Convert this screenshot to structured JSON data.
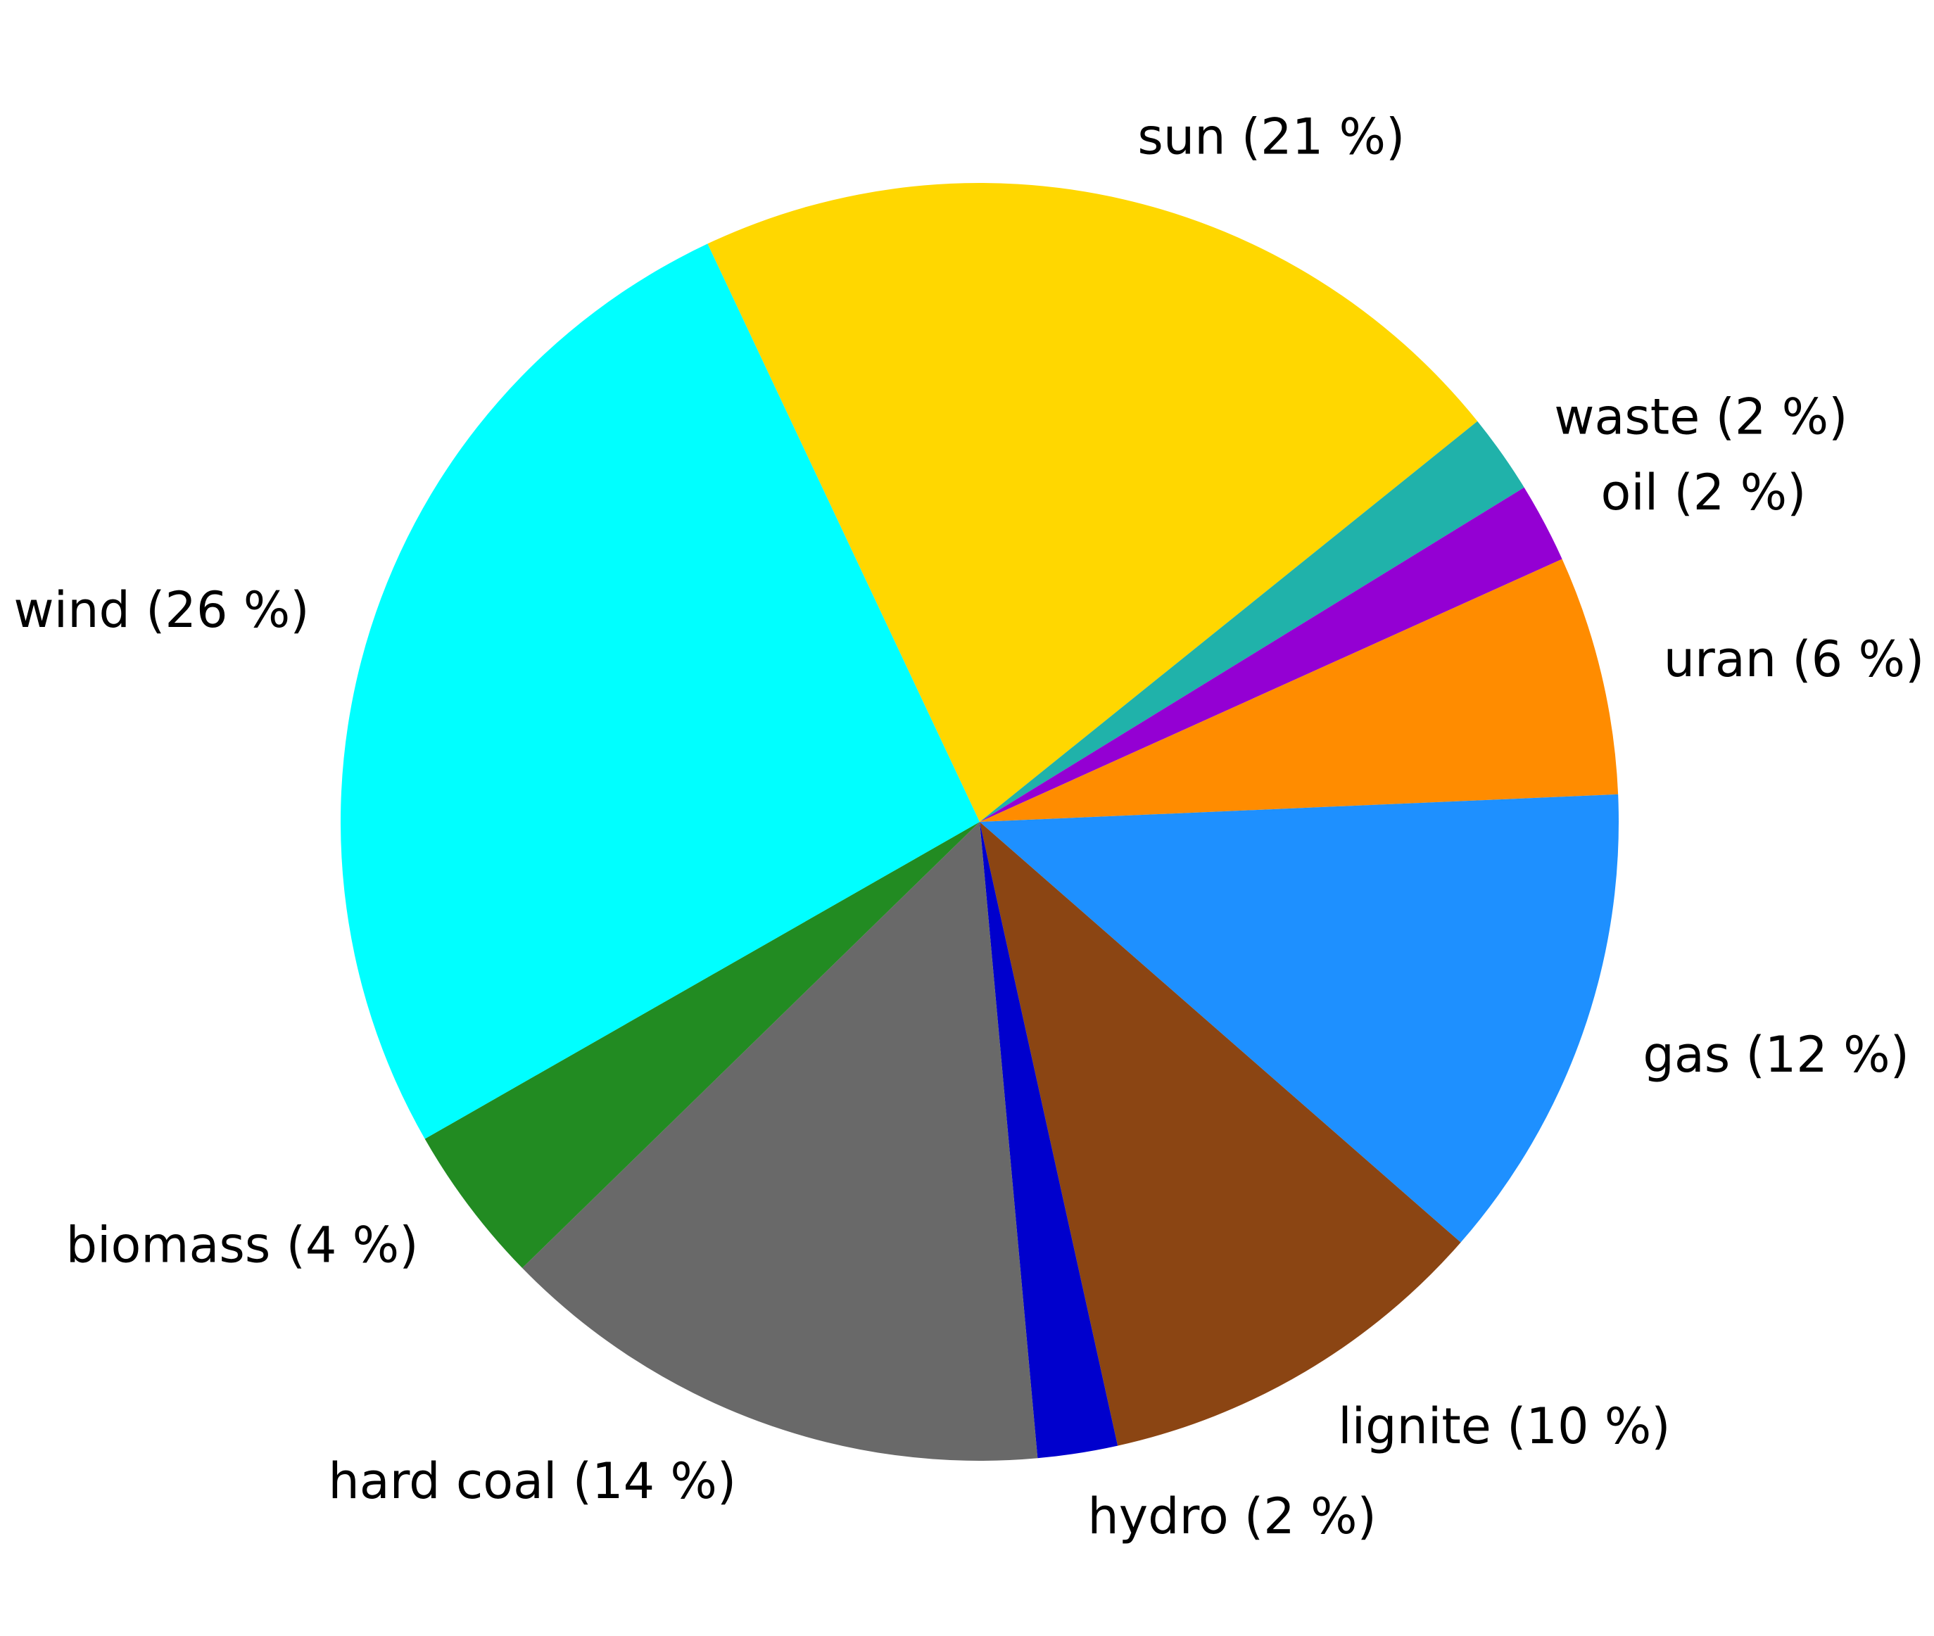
{
  "chart_data": {
    "type": "pie",
    "title": "",
    "start_angle_deg": 115.2,
    "direction": "clockwise",
    "slices": [
      {
        "label": "sun (21 %)",
        "name": "sun",
        "value": 21,
        "color": "#FFD700"
      },
      {
        "label": "waste (2 %)",
        "name": "waste",
        "value": 2,
        "color": "#20B2AA"
      },
      {
        "label": "oil (2 %)",
        "name": "oil",
        "value": 2,
        "color": "#9400D3"
      },
      {
        "label": "uran (6 %)",
        "name": "uran",
        "value": 6,
        "color": "#FF8C00"
      },
      {
        "label": "gas (12 %)",
        "name": "gas",
        "value": 12,
        "color": "#1E90FF"
      },
      {
        "label": "lignite (10 %)",
        "name": "lignite",
        "value": 10,
        "color": "#8B4513"
      },
      {
        "label": "hydro (2 %)",
        "name": "hydro",
        "value": 2,
        "color": "#0000CD"
      },
      {
        "label": "hard coal (14 %)",
        "name": "hard-coal",
        "value": 14,
        "color": "#696969"
      },
      {
        "label": "biomass (4 %)",
        "name": "biomass",
        "value": 4,
        "color": "#228B22"
      },
      {
        "label": "wind (26 %)",
        "name": "wind",
        "value": 26,
        "color": "#00FFFF"
      }
    ]
  }
}
